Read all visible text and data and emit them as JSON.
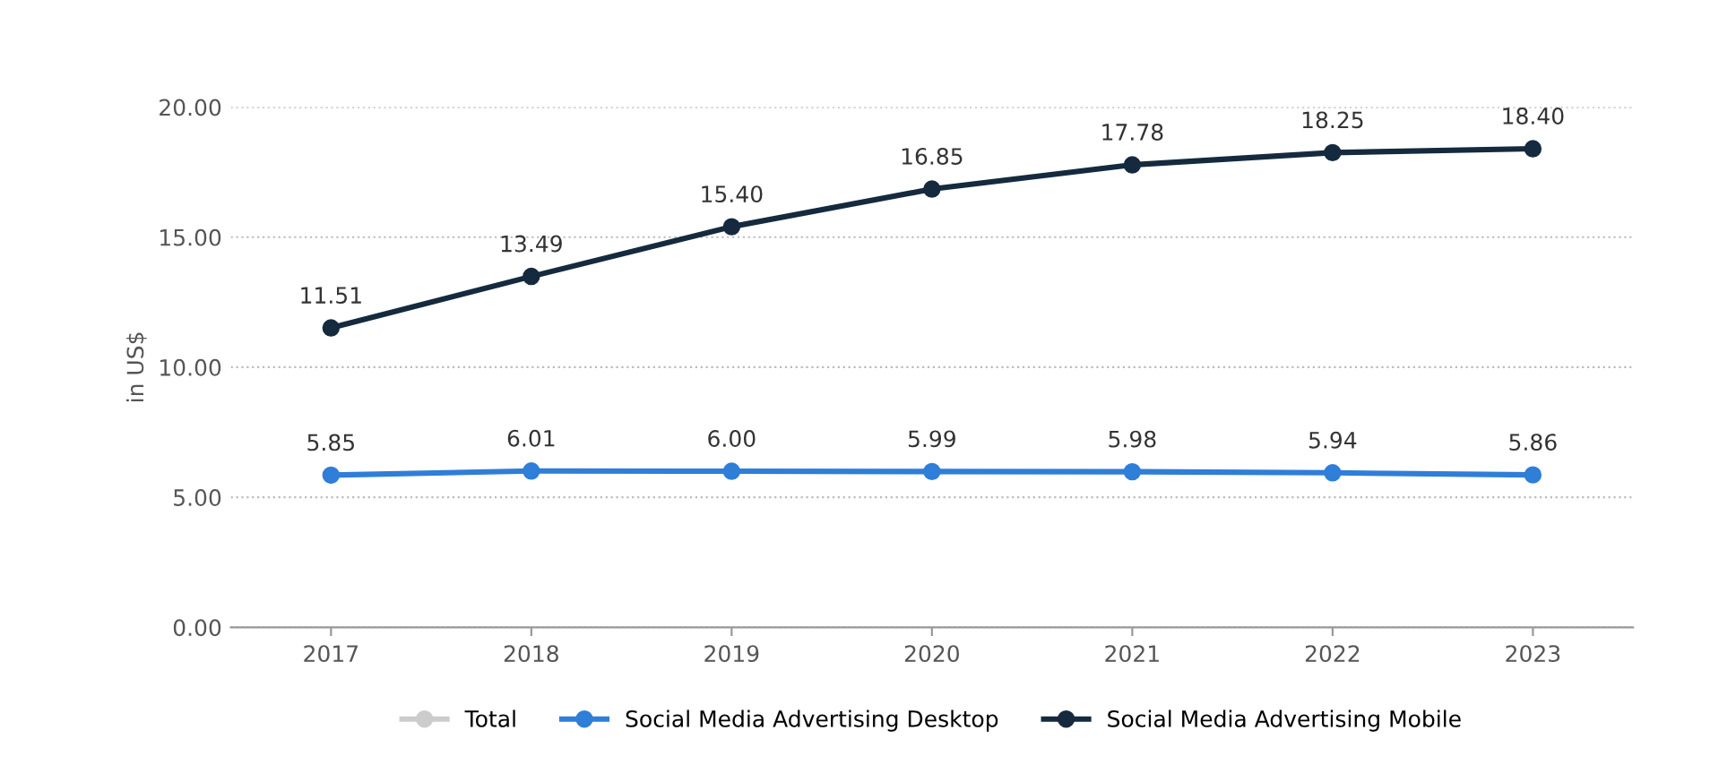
{
  "chart_data": {
    "type": "line",
    "ylabel": "in US$",
    "categories": [
      "2017",
      "2018",
      "2019",
      "2020",
      "2021",
      "2022",
      "2023"
    ],
    "series": [
      {
        "name": "Total",
        "color": "#cccccc",
        "values": [
          null,
          null,
          null,
          null,
          null,
          null,
          null
        ]
      },
      {
        "name": "Social Media Advertising Desktop",
        "color": "#2f7ed8",
        "values": [
          5.85,
          6.01,
          6.0,
          5.99,
          5.98,
          5.94,
          5.86
        ],
        "value_labels": [
          "5.85",
          "6.01",
          "6.00",
          "5.99",
          "5.98",
          "5.94",
          "5.86"
        ]
      },
      {
        "name": "Social Media Advertising Mobile",
        "color": "#152a3e",
        "values": [
          11.51,
          13.49,
          15.4,
          16.85,
          17.78,
          18.25,
          18.4
        ],
        "value_labels": [
          "11.51",
          "13.49",
          "15.40",
          "16.85",
          "17.78",
          "18.25",
          "18.40"
        ]
      }
    ],
    "ylim": [
      0,
      20
    ],
    "yticks": [
      {
        "value": 0,
        "label": "0.00"
      },
      {
        "value": 5,
        "label": "5.00"
      },
      {
        "value": 10,
        "label": "10.00"
      },
      {
        "value": 15,
        "label": "15.00"
      },
      {
        "value": 20,
        "label": "20.00"
      }
    ],
    "grid": "y",
    "legend": "bottom",
    "marker": "circle",
    "line_style": "solid"
  }
}
